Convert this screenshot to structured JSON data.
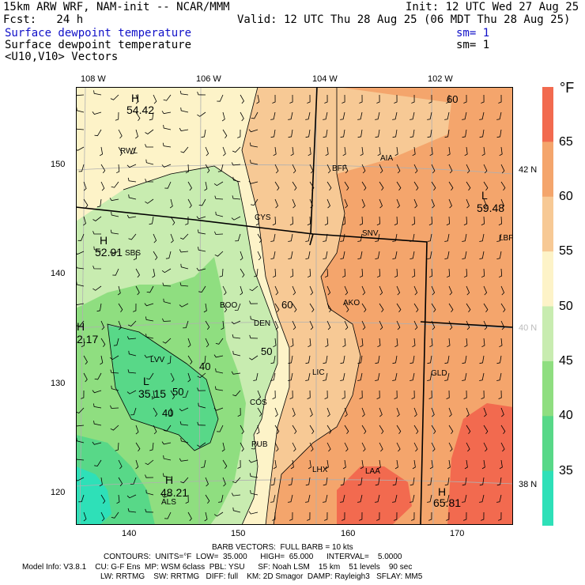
{
  "header": {
    "line1_left": "15km ARW WRF, NAM-init -- NCAR/MMM",
    "line1_right": "Init: 12 UTC Wed 27 Aug 25",
    "line2_left": "Fcst:   24 h",
    "line2_right": "Valid: 12 UTC Thu 28 Aug 25 (06 MDT Thu 28 Aug 25)",
    "line3_left": "Surface dewpoint temperature",
    "line3_right": "sm= 1",
    "line4_left": "Surface dewpoint temperature",
    "line4_right": "sm= 1",
    "line5_left": "<U10,V10> Vectors"
  },
  "top_lon_labels": [
    "108 W",
    "106 W",
    "104 W",
    "102 W"
  ],
  "left_grid_labels": [
    "150",
    "140",
    "130",
    "120"
  ],
  "bottom_grid_labels": [
    "140",
    "150",
    "160",
    "170"
  ],
  "right_lat_labels": [
    "42 N",
    "40 N",
    "38 N"
  ],
  "colorbar": {
    "unit": "°F",
    "levels": [
      "65",
      "60",
      "55",
      "50",
      "45",
      "40",
      "35"
    ],
    "colors": [
      "#f26a4f",
      "#f4a56c",
      "#f7c995",
      "#fdf3c8",
      "#c8ecb0",
      "#8fde80",
      "#58d888",
      "#2ee0b8"
    ]
  },
  "map": {
    "station_labels": [
      "RWL",
      "CYS",
      "SBS",
      "BFF",
      "AIA",
      "SNV",
      "LBF",
      "BOO",
      "DEN",
      "AKO",
      "LIC",
      "GLD",
      "COS",
      "PUB",
      "LHX",
      "LAA",
      "ALS",
      "LVV"
    ],
    "contour_labels": [
      "60",
      "60",
      "50",
      "50",
      "40",
      "40"
    ],
    "extrema": [
      {
        "sym": "H",
        "value": "54.42"
      },
      {
        "sym": "H",
        "value": "52.91"
      },
      {
        "sym": "H",
        "value": "2.17"
      },
      {
        "sym": "L",
        "value": "35.15"
      },
      {
        "sym": "H",
        "value": "48.21"
      },
      {
        "sym": "L",
        "value": "59.48"
      },
      {
        "sym": "H",
        "value": "65.81"
      }
    ]
  },
  "footer": {
    "line1": "BARB VECTORS:  FULL BARB = 10 kts",
    "line2": "CONTOURS:  UNITS=°F  LOW=  35.000      HIGH=  65.000      INTERVAL=    5.0000",
    "line3": "Model Info: V3.8.1    CU: G-F Ens  MP: WSM 6class  PBL: YSU      SF: Noah LSM    15 km    51 levels    90 sec",
    "line4": "LW: RRTMG    SW: RRTMG   DIFF: full    KM: 2D Smagor  DAMP: Rayleigh3   SFLAY: MM5"
  }
}
